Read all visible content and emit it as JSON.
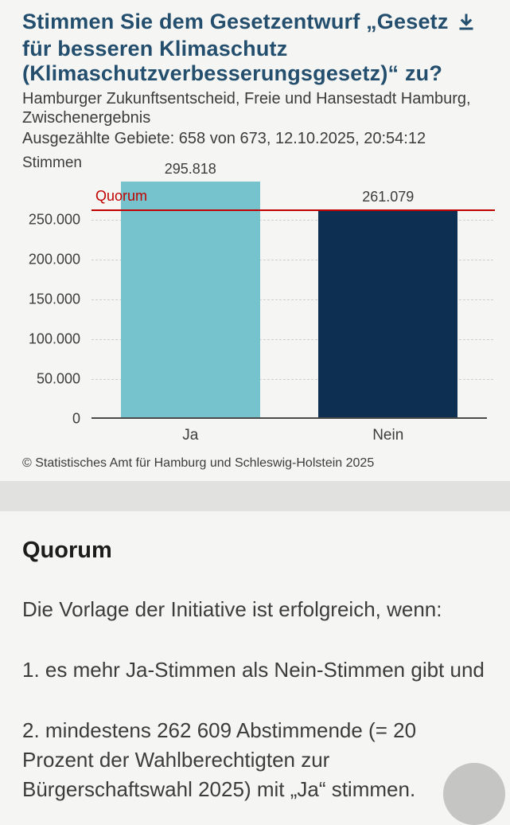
{
  "header": {
    "title_part1": "Stimmen Sie dem Gesetzentwurf „Gesetz",
    "title_part2": "für besseren Klimaschutz (Klimaschutzverbesserungsgesetz)“ zu?",
    "subtitle": "Hamburger Zukunftsentscheid, Freie und Hansestadt Hamburg, Zwischenergebnis",
    "status": "Ausgezählte Gebiete: 658 von 673, 12.10.2025, 20:54:12"
  },
  "chart_data": {
    "type": "bar",
    "title": "Stimmen Sie dem Gesetzentwurf „Gesetz für besseren Klimaschutz (Klimaschutzverbesserungsgesetz)“ zu?",
    "unit_label": "Stimmen",
    "categories": [
      "Ja",
      "Nein"
    ],
    "values": [
      295818,
      261079
    ],
    "value_labels": [
      "295.818",
      "261.079"
    ],
    "bar_colors": [
      "#76c3cd",
      "#0d2f52"
    ],
    "ylabel": "Stimmen",
    "xlabel": "",
    "ylim": [
      0,
      310000
    ],
    "yticks": [
      0,
      50000,
      100000,
      150000,
      200000,
      250000
    ],
    "ytick_labels": [
      "0",
      "50.000",
      "100.000",
      "150.000",
      "200.000",
      "250.000"
    ],
    "grid": "dashed horizontal gridlines",
    "legend": "none",
    "reference_line": {
      "label": "Quorum",
      "value": 262609,
      "color": "#c00000"
    }
  },
  "footer": {
    "copyright": "© Statistisches Amt für Hamburg und Schleswig-Holstein 2025"
  },
  "info": {
    "heading": "Quorum",
    "paragraphs": [
      "Die Vorlage der Initiative ist erfolgreich, wenn:",
      "1. es mehr Ja-Stimmen als Nein-Stimmen gibt und",
      "2. mindestens 262 609 Abstimmende (= 20 Prozent der Wahlberechtigten zur Bürgerschaftswahl 2025) mit „Ja“ stimmen."
    ]
  },
  "colors": {
    "background": "#f5f5f3",
    "divider_band": "#e1e1df",
    "title": "#234e6d",
    "bar_ja": "#76c3cd",
    "bar_nein": "#0d2f52",
    "quorum_red": "#c00000",
    "axis": "#4a4a4a"
  }
}
